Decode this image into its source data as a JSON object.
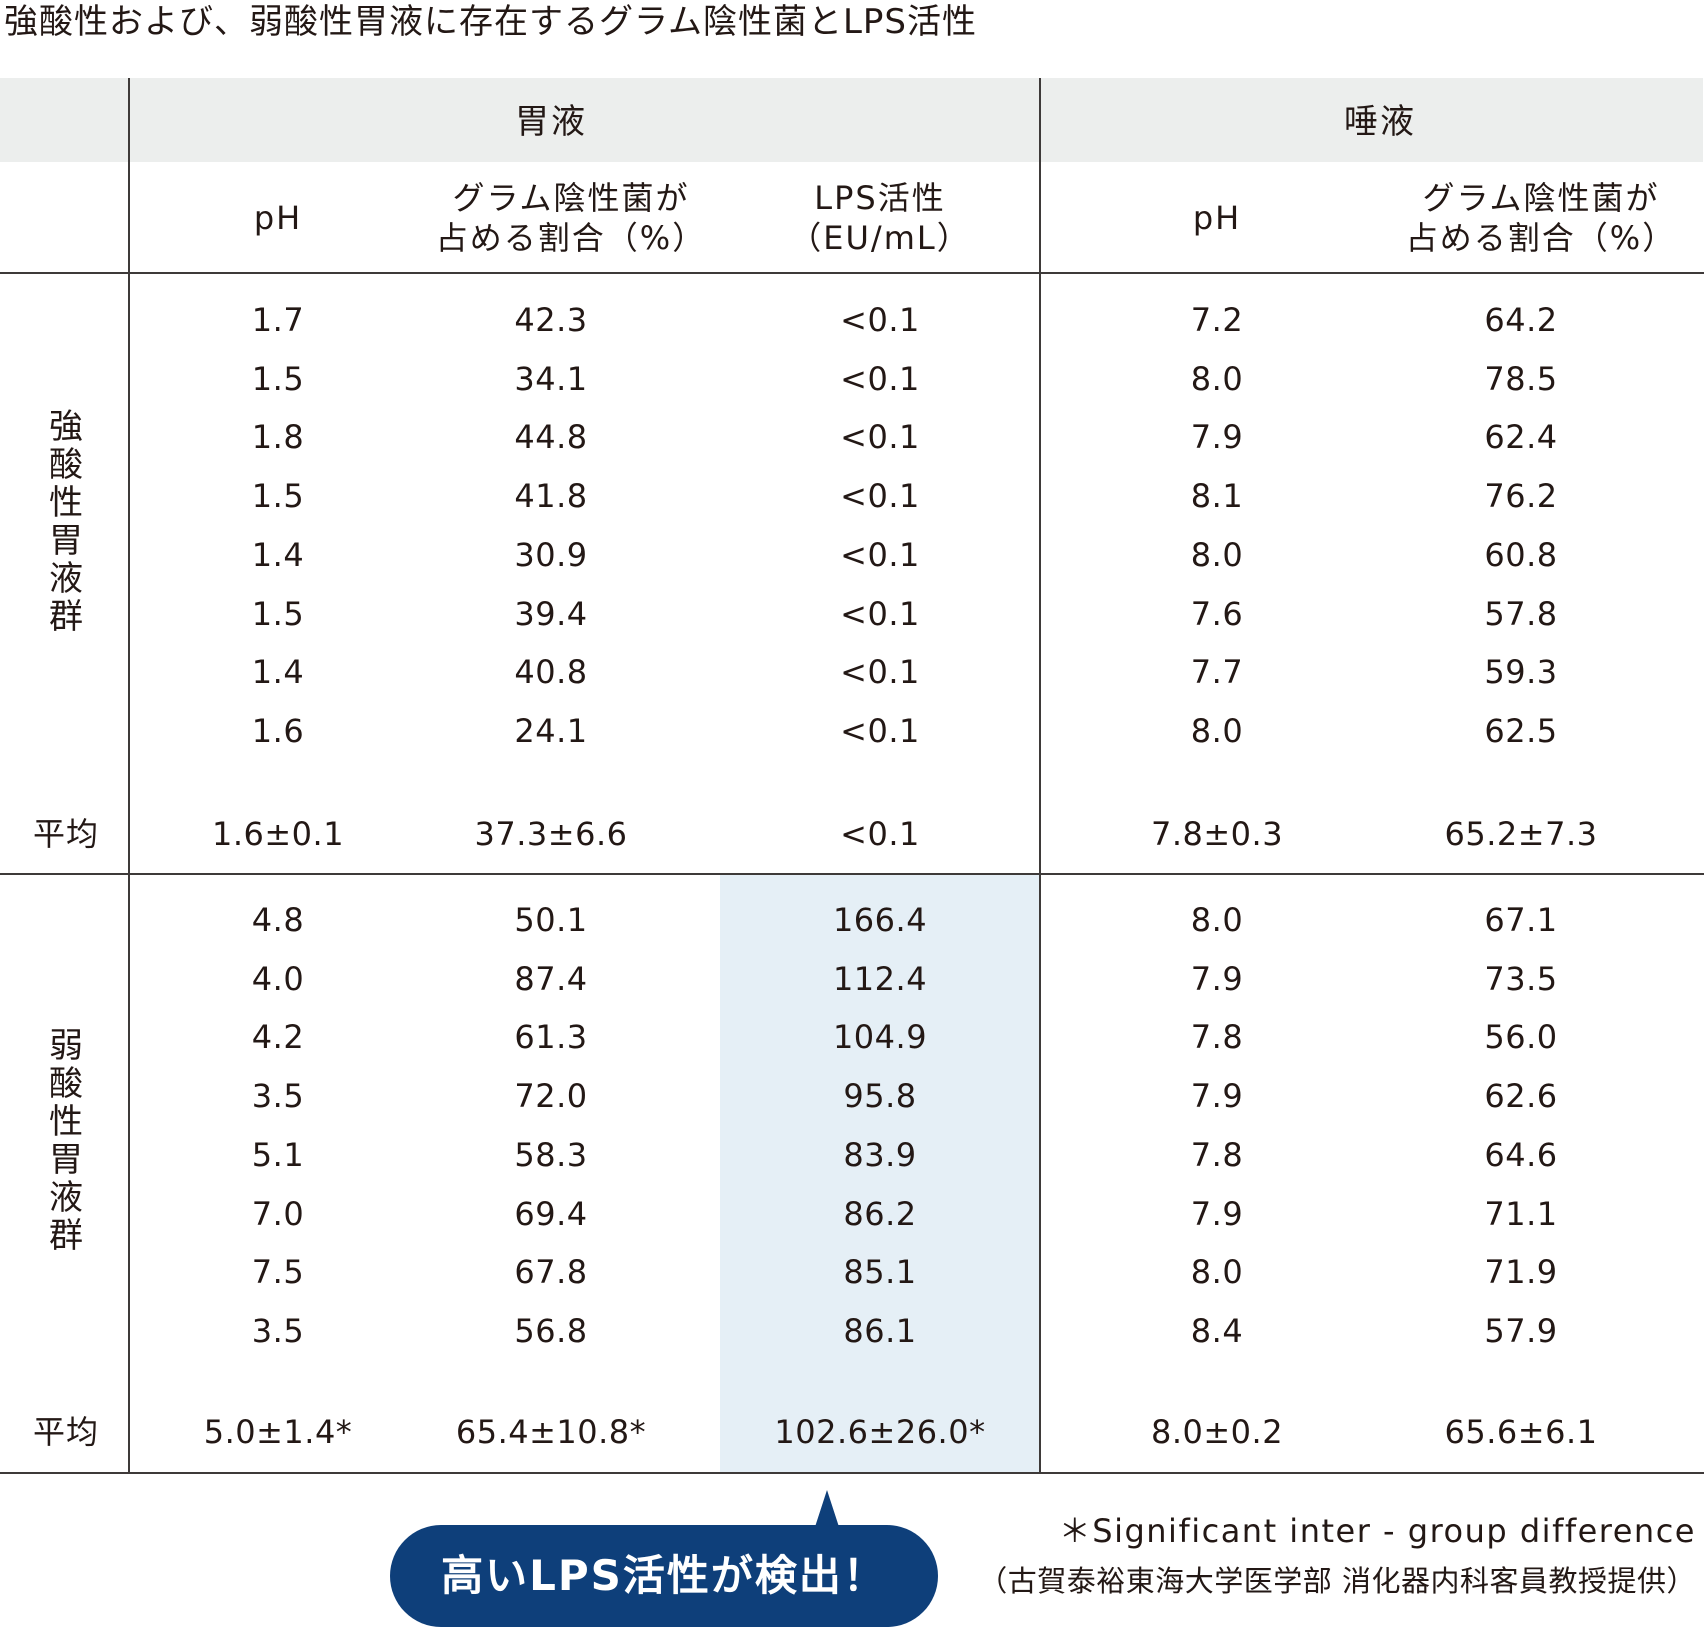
{
  "title": "強酸性および、弱酸性胃液に存在するグラム陰性菌とLPS活性",
  "groups": {
    "gastric": "胃液",
    "saliva": "唾液"
  },
  "columns": {
    "ph": "pH",
    "gram_line1": "グラム陰性菌が",
    "gram_line2": "占める割合（%）",
    "lps_line1": "LPS活性",
    "lps_line2": "（EU/mL）"
  },
  "strong": {
    "label": "強酸性胃液群",
    "rows": [
      [
        "1.7",
        "42.3",
        "<0.1",
        "7.2",
        "64.2"
      ],
      [
        "1.5",
        "34.1",
        "<0.1",
        "8.0",
        "78.5"
      ],
      [
        "1.8",
        "44.8",
        "<0.1",
        "7.9",
        "62.4"
      ],
      [
        "1.5",
        "41.8",
        "<0.1",
        "8.1",
        "76.2"
      ],
      [
        "1.4",
        "30.9",
        "<0.1",
        "8.0",
        "60.8"
      ],
      [
        "1.5",
        "39.4",
        "<0.1",
        "7.6",
        "57.8"
      ],
      [
        "1.4",
        "40.8",
        "<0.1",
        "7.7",
        "59.3"
      ],
      [
        "1.6",
        "24.1",
        "<0.1",
        "8.0",
        "62.5"
      ]
    ],
    "avg_label": "平均",
    "avg": [
      "1.6±0.1",
      "37.3±6.6",
      "<0.1",
      "7.8±0.3",
      "65.2±7.3"
    ]
  },
  "weak": {
    "label": "弱酸性胃液群",
    "rows": [
      [
        "4.8",
        "50.1",
        "166.4",
        "8.0",
        "67.1"
      ],
      [
        "4.0",
        "87.4",
        "112.4",
        "7.9",
        "73.5"
      ],
      [
        "4.2",
        "61.3",
        "104.9",
        "7.8",
        "56.0"
      ],
      [
        "3.5",
        "72.0",
        "95.8",
        "7.9",
        "62.6"
      ],
      [
        "5.1",
        "58.3",
        "83.9",
        "7.8",
        "64.6"
      ],
      [
        "7.0",
        "69.4",
        "86.2",
        "7.9",
        "71.1"
      ],
      [
        "7.5",
        "67.8",
        "85.1",
        "8.0",
        "71.9"
      ],
      [
        "3.5",
        "56.8",
        "86.1",
        "8.4",
        "57.9"
      ]
    ],
    "avg_label": "平均",
    "avg": [
      "5.0±1.4*",
      "65.4±10.8*",
      "102.6±26.0*",
      "8.0±0.2",
      "65.6±6.1"
    ]
  },
  "callout": "高いLPS活性が検出！",
  "footnote": "＊Significant inter - group difference",
  "credit": "（古賀泰裕東海大学医学部 消化器内科客員教授提供）",
  "colors": {
    "header_band": "#eceeed",
    "highlight": "#e5eff6",
    "callout_bg": "#0e3f7a",
    "rule": "#3e3a39"
  }
}
